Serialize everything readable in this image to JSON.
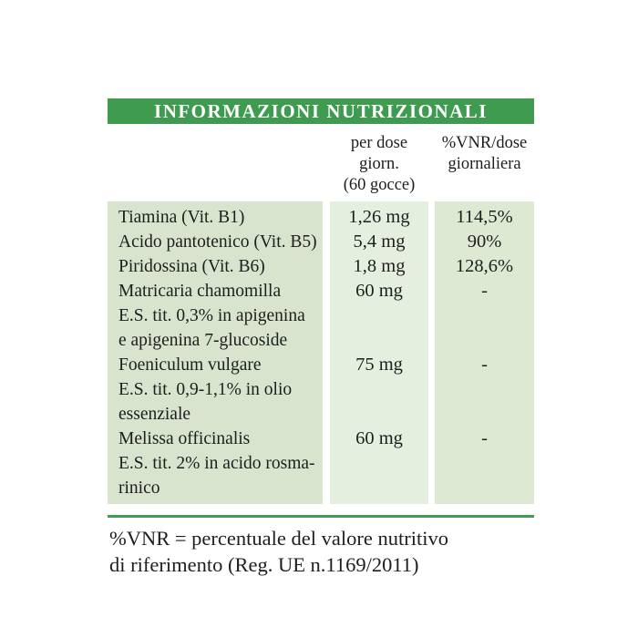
{
  "colors": {
    "accent_green": "#3f9b4f",
    "ingredient_column_bg": "#d8e4cd",
    "dose_column_bg": "#e5efdf",
    "vnr_column_bg": "#dde9d2",
    "title_text": "#ffffff",
    "body_text": "#1e1e1e"
  },
  "header": {
    "title": "INFORMAZIONI NUTRIZIONALI"
  },
  "columns": {
    "dose_line1": "per dose giorn.",
    "dose_line2": "(60 gocce)",
    "vnr_line1": "%VNR/dose",
    "vnr_line2": "giornaliera"
  },
  "table": {
    "lines": [
      {
        "name": "Tiamina (Vit. B1)",
        "dose": "1,26 mg",
        "vnr": "114,5%"
      },
      {
        "name": "Acido pantotenico (Vit. B5)",
        "dose": "5,4 mg",
        "vnr": "90%"
      },
      {
        "name": "Piridossina (Vit. B6)",
        "dose": "1,8 mg",
        "vnr": "128,6%"
      },
      {
        "name": "Matricaria chamomilla",
        "dose": "60 mg",
        "vnr": "-"
      },
      {
        "name": "E.S. tit. 0,3% in apigenina",
        "dose": "",
        "vnr": ""
      },
      {
        "name": "e apigenina 7-glucoside",
        "dose": "",
        "vnr": ""
      },
      {
        "name": "Foeniculum vulgare",
        "dose": "75 mg",
        "vnr": "-"
      },
      {
        "name": "E.S. tit. 0,9-1,1% in olio",
        "dose": "",
        "vnr": ""
      },
      {
        "name": "essenziale",
        "dose": "",
        "vnr": ""
      },
      {
        "name": "Melissa officinalis",
        "dose": "60 mg",
        "vnr": "-"
      },
      {
        "name": "E.S. tit. 2% in acido rosma-",
        "dose": "",
        "vnr": ""
      },
      {
        "name": "rinico",
        "dose": "",
        "vnr": ""
      }
    ]
  },
  "footer": {
    "line1": "%VNR = percentuale del valore nutritivo",
    "line2": "di riferimento (Reg. UE n.1169/2011)"
  }
}
